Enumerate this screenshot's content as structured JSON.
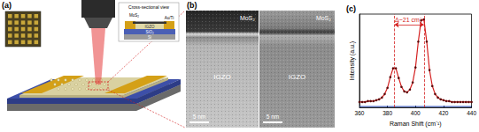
{
  "panel_a": {
    "label": "(a)",
    "inset": {
      "title": "Cross-sectional view",
      "layers": [
        "MoS₂",
        "Au/Ti",
        "IGZO",
        "SiO₂",
        "Si"
      ]
    }
  },
  "panel_b": {
    "label": "(b)",
    "images": [
      {
        "top": "MoS₂",
        "bottom": "IGZO",
        "scale_bar": "5 nm"
      },
      {
        "top": "MoS₂",
        "bottom": "IGZO",
        "scale_bar": "5 nm"
      }
    ]
  },
  "chart_data": {
    "type": "line",
    "title": "(c)",
    "x_label": "Raman Shift (cm⁻¹)",
    "y_label": "Intensity (a.u.)",
    "x": [
      360,
      362,
      364,
      366,
      368,
      370,
      372,
      374,
      376,
      378,
      380,
      382,
      384,
      386,
      388,
      390,
      392,
      394,
      396,
      398,
      400,
      402,
      404,
      406,
      408,
      410,
      412,
      414,
      416,
      418,
      420,
      422,
      424,
      426,
      428,
      430,
      432,
      434,
      436,
      438,
      440
    ],
    "series": [
      {
        "color": "#d42020",
        "marker": "circle",
        "line_style": "solid",
        "values": [
          0.06,
          0.06,
          0.06,
          0.07,
          0.07,
          0.07,
          0.08,
          0.09,
          0.11,
          0.15,
          0.22,
          0.34,
          0.44,
          0.44,
          0.33,
          0.23,
          0.18,
          0.17,
          0.2,
          0.28,
          0.45,
          0.74,
          0.98,
          0.99,
          0.74,
          0.42,
          0.24,
          0.15,
          0.11,
          0.09,
          0.08,
          0.07,
          0.07,
          0.06,
          0.06,
          0.06,
          0.06,
          0.06,
          0.06,
          0.06,
          0.06
        ]
      },
      {
        "color": "#3a5fcd",
        "marker": "none",
        "line_style": "solid",
        "values": [
          0.01,
          0.01,
          0.01,
          0.01,
          0.01,
          0.01,
          0.01,
          0.01,
          0.01,
          0.01,
          0.01,
          0.01,
          0.01,
          0.01,
          0.01,
          0.01,
          0.01,
          0.01,
          0.01,
          0.01,
          0.01,
          0.01,
          0.01,
          0.01,
          0.01,
          0.01,
          0.01,
          0.01,
          0.01,
          0.01,
          0.01,
          0.01,
          0.01,
          0.01,
          0.01,
          0.01,
          0.01,
          0.01,
          0.01,
          0.01,
          0.01
        ]
      }
    ],
    "xlim": [
      360,
      440
    ],
    "xticks": [
      360,
      380,
      400,
      420,
      440
    ],
    "ylim": [
      0,
      1.05
    ],
    "tick_labels": "x",
    "grid": false,
    "annotations": [
      {
        "text": "Δ~21 cm⁻¹",
        "x": [
          385,
          406
        ],
        "y": 0.93,
        "color": "#d42020"
      }
    ]
  }
}
